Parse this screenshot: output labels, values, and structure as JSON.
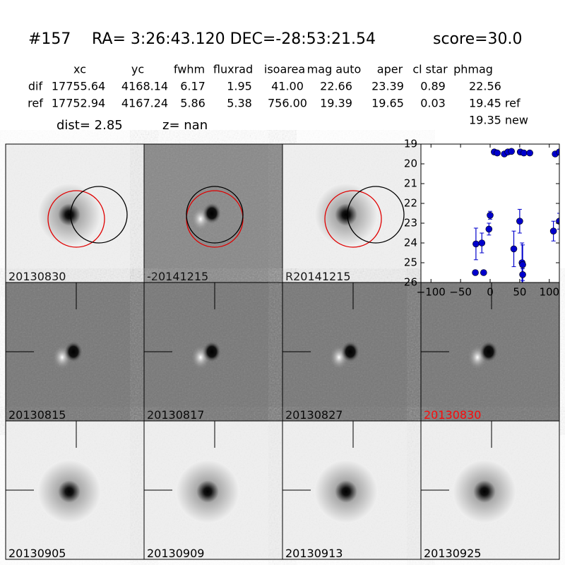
{
  "header": {
    "id": "#157",
    "coords": "RA= 3:26:43.120 DEC=-28:53:21.54",
    "score": "score=30.0"
  },
  "table": {
    "columns": [
      "xc",
      "yc",
      "fwhm",
      "fluxrad",
      "isoarea",
      "mag auto",
      "aper",
      "cl star",
      "phmag"
    ],
    "rows": [
      [
        "dif",
        "17755.64",
        "4168.14",
        "6.17",
        "1.95",
        "41.00",
        "22.66",
        "23.39",
        "0.89",
        "22.56"
      ],
      [
        "ref",
        "17752.94",
        "4167.24",
        "5.86",
        "5.38",
        "756.00",
        "19.39",
        "19.65",
        "0.03",
        "19.45 ref"
      ]
    ],
    "extra": "19.35 new",
    "dist": "dist=  2.85",
    "z": "z=   nan"
  },
  "stamps": [
    {
      "label": "20130830",
      "kind": "ref",
      "circles": true
    },
    {
      "label": "-20141215",
      "kind": "diff",
      "circles": true
    },
    {
      "label": "R20141215",
      "kind": "ref",
      "circles": true
    },
    {
      "label": "20130815",
      "kind": "diff"
    },
    {
      "label": "20130817",
      "kind": "diff"
    },
    {
      "label": "20130827",
      "kind": "diff"
    },
    {
      "label": "20130830",
      "kind": "diff",
      "label_color": "#ff0000"
    },
    {
      "label": "20130905",
      "kind": "ref"
    },
    {
      "label": "20130909",
      "kind": "ref"
    },
    {
      "label": "20130913",
      "kind": "ref"
    },
    {
      "label": "20130925",
      "kind": "ref"
    }
  ],
  "chart_data": {
    "type": "scatter",
    "color": "#0000cc",
    "invert_y": true,
    "x": [
      -25,
      -11,
      -24,
      -14,
      -2,
      0,
      7,
      12,
      24,
      30,
      36,
      51,
      57,
      67,
      40,
      50,
      54,
      55,
      55,
      107,
      117,
      110,
      117
    ],
    "values": [
      25.5,
      25.5,
      24.05,
      24.0,
      23.3,
      22.6,
      19.4,
      19.45,
      19.5,
      19.4,
      19.37,
      19.4,
      19.45,
      19.45,
      24.3,
      22.9,
      25.0,
      25.1,
      25.6,
      23.4,
      22.9,
      19.5,
      19.4
    ],
    "errors": [
      0.05,
      0.05,
      0.8,
      0.5,
      0.3,
      0.2,
      0.05,
      0.05,
      0.05,
      0.05,
      0.05,
      0.05,
      0.05,
      0.05,
      0.9,
      0.6,
      1.0,
      1.0,
      0.3,
      0.5,
      0.4,
      0.05,
      0.05
    ],
    "xlim": [
      -117,
      117
    ],
    "ylim": [
      26,
      19
    ],
    "xticks": [
      {
        "value": -100,
        "label": "−100"
      },
      {
        "value": -50,
        "label": "−50"
      },
      0,
      50,
      100
    ],
    "yticks": [
      19,
      20,
      21,
      22,
      23,
      24,
      25,
      26
    ]
  }
}
